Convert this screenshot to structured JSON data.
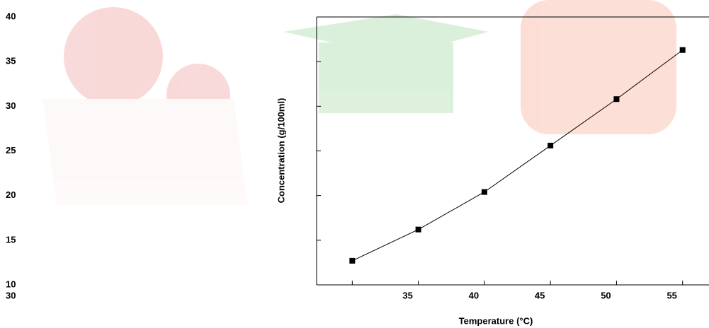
{
  "chart_data": {
    "type": "line",
    "x_label": "Temperature (°C)",
    "y_label": "Concentration (g/100ml)",
    "x": [
      30,
      35,
      40,
      45,
      50,
      55
    ],
    "series": [
      {
        "color": "#000000",
        "values": [
          12.7,
          16.2,
          20.4,
          25.6,
          30.8,
          36.3
        ]
      }
    ],
    "xlim": [
      27.3,
      57.0
    ],
    "xticks": [
      30,
      35,
      40,
      45,
      50,
      55
    ],
    "ylim": [
      10,
      40
    ],
    "yticks": [
      10,
      15,
      20,
      25,
      30,
      35,
      40
    ]
  }
}
